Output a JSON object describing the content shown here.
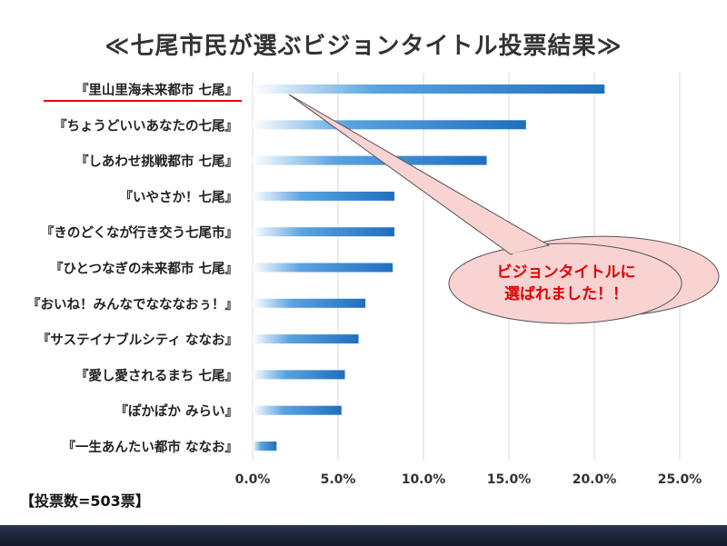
{
  "chart_data": {
    "type": "bar",
    "orientation": "horizontal",
    "title": "≪七尾市民が選ぶビジョンタイトル投票結果≫",
    "categories": [
      "『里山里海未来都市 七尾』",
      "『ちょうどいいあなたの七尾』",
      "『しあわせ挑戦都市 七尾』",
      "『いやさか！七尾』",
      "『きのどくなが行き交う七尾市』",
      "『ひとつなぎの未来都市 七尾』",
      "『おいね！みんなでなななおぅ！』",
      "『サステイナブルシティ ななお』",
      "『愛し愛されるまち 七尾』",
      "『ぽかぽか みらい』",
      "『一生あんたい都市 ななお』"
    ],
    "values": [
      20.6,
      16.0,
      13.7,
      8.3,
      8.3,
      8.2,
      6.6,
      6.2,
      5.4,
      5.2,
      1.4
    ],
    "xlim": [
      0,
      25
    ],
    "xticks": [
      "0.0%",
      "5.0%",
      "10.0%",
      "15.0%",
      "20.0%",
      "25.0%"
    ],
    "grid": true,
    "bar_color": "#1f6fc0",
    "highlight_index": 0,
    "highlight_underline_color": "#e00000"
  },
  "annotation": {
    "callout_line1": "ビジョンタイトルに",
    "callout_line2": "選ばれました！！",
    "callout_fill": "#f9d2d2",
    "callout_text_color": "#e00000"
  },
  "votes_label": "【投票数=503票】"
}
